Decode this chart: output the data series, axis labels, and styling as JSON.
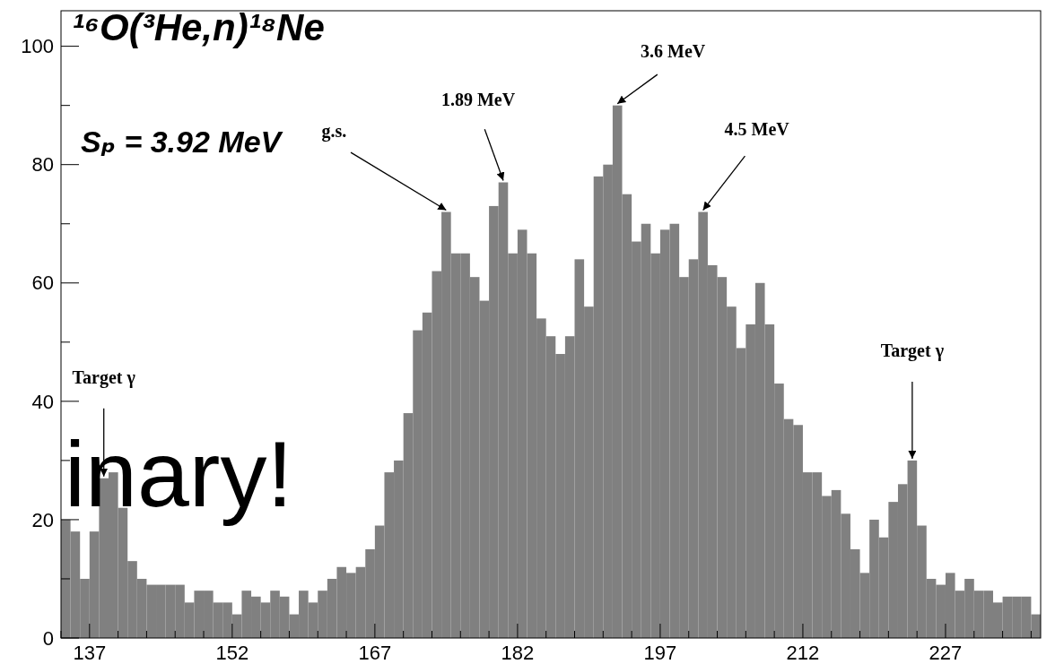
{
  "chart_data": {
    "type": "histogram",
    "title": "¹⁶O(³He,n)¹⁸Ne",
    "bins": [
      134,
      135,
      136,
      137,
      138,
      139,
      140,
      141,
      142,
      143,
      144,
      145,
      146,
      147,
      148,
      149,
      150,
      151,
      152,
      153,
      154,
      155,
      156,
      157,
      158,
      159,
      160,
      161,
      162,
      163,
      164,
      165,
      166,
      167,
      168,
      169,
      170,
      171,
      172,
      173,
      174,
      175,
      176,
      177,
      178,
      179,
      180,
      181,
      182,
      183,
      184,
      185,
      186,
      187,
      188,
      189,
      190,
      191,
      192,
      193,
      194,
      195,
      196,
      197,
      198,
      199,
      200,
      201,
      202,
      203,
      204,
      205,
      206,
      207,
      208,
      209,
      210,
      211,
      212,
      213,
      214,
      215,
      216,
      217,
      218,
      219,
      220,
      221,
      222,
      223,
      224,
      225,
      226,
      227,
      228,
      229,
      230,
      231,
      232,
      233,
      234,
      235,
      236,
      237
    ],
    "values": [
      20,
      18,
      10,
      18,
      27,
      28,
      22,
      13,
      10,
      9,
      9,
      9,
      9,
      6,
      8,
      8,
      6,
      6,
      4,
      8,
      7,
      6,
      8,
      7,
      4,
      8,
      6,
      8,
      10,
      12,
      11,
      12,
      15,
      19,
      28,
      30,
      38,
      52,
      55,
      62,
      72,
      65,
      65,
      61,
      57,
      73,
      77,
      65,
      69,
      65,
      54,
      51,
      48,
      51,
      64,
      56,
      78,
      80,
      90,
      75,
      67,
      70,
      65,
      69,
      70,
      61,
      64,
      72,
      63,
      61,
      56,
      49,
      53,
      60,
      53,
      43,
      37,
      36,
      28,
      28,
      24,
      25,
      21,
      15,
      11,
      20,
      17,
      23,
      26,
      30,
      19,
      10,
      9,
      11,
      8,
      10,
      8,
      8,
      6,
      7,
      7,
      7,
      4
    ],
    "color": "#808080",
    "xlim": [
      134,
      237
    ],
    "xticks": [
      {
        "value": 134,
        "label": null
      },
      137,
      {
        "value": 140,
        "label": null
      },
      {
        "value": 143,
        "label": null
      },
      {
        "value": 146,
        "label": null
      },
      {
        "value": 149,
        "label": null
      },
      152,
      {
        "value": 155,
        "label": null
      },
      {
        "value": 158,
        "label": null
      },
      {
        "value": 161,
        "label": null
      },
      {
        "value": 164,
        "label": null
      },
      167,
      {
        "value": 170,
        "label": null
      },
      {
        "value": 173,
        "label": null
      },
      {
        "value": 176,
        "label": null
      },
      {
        "value": 179,
        "label": null
      },
      182,
      {
        "value": 185,
        "label": null
      },
      {
        "value": 188,
        "label": null
      },
      {
        "value": 191,
        "label": null
      },
      {
        "value": 194,
        "label": null
      },
      197,
      {
        "value": 200,
        "label": null
      },
      {
        "value": 203,
        "label": null
      },
      {
        "value": 206,
        "label": null
      },
      {
        "value": 209,
        "label": null
      },
      212,
      {
        "value": 215,
        "label": null
      },
      {
        "value": 218,
        "label": null
      },
      {
        "value": 221,
        "label": null
      },
      {
        "value": 224,
        "label": null
      },
      227,
      {
        "value": 230,
        "label": null
      },
      {
        "value": 233,
        "label": null
      },
      {
        "value": 236,
        "label": null
      }
    ],
    "ylim": [
      0,
      106
    ],
    "yticks": [
      0,
      {
        "value": 10,
        "label": null
      },
      20,
      {
        "value": 30,
        "label": null
      },
      40,
      {
        "value": 50,
        "label": null
      },
      60,
      {
        "value": 70,
        "label": null
      },
      80,
      {
        "value": 90,
        "label": null
      },
      100
    ],
    "annotations": [
      {
        "text": "g.s.",
        "x": 174.5,
        "y": 72
      },
      {
        "text": "1.89 MeV",
        "x": 180.5,
        "y": 77
      },
      {
        "text": "3.6 MeV",
        "x": 192.5,
        "y": 90
      },
      {
        "text": "4.5 MeV",
        "x": 201.5,
        "y": 72
      },
      {
        "text": "Target γ",
        "x": 138.5,
        "y": 27
      },
      {
        "text": "Target γ",
        "x": 223.5,
        "y": 30
      },
      "Sₚ = 3.92 MeV",
      "inary!"
    ]
  }
}
